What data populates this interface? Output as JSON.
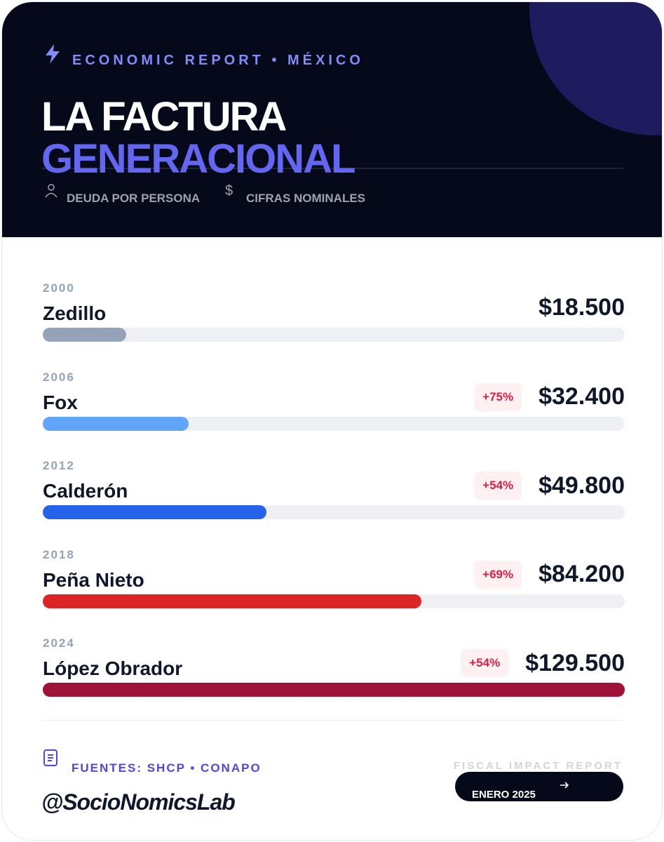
{
  "chart_data": {
    "type": "bar",
    "kicker": "ECONOMIC REPORT • MÉXICO",
    "title": "LA FACTURA",
    "title_highlight": "GENERACIONAL",
    "tags": [
      "DEUDA POR PERSONA",
      "CIFRAS NOMINALES"
    ],
    "years": [
      "2000",
      "2006",
      "2012",
      "2018",
      "2024"
    ],
    "categories": [
      "Zedillo",
      "Fox",
      "Calderón",
      "Peña Nieto",
      "López Obrador"
    ],
    "values": [
      18500,
      32400,
      49800,
      84200,
      129500
    ],
    "value_labels": [
      "$18.500",
      "$32.400",
      "$49.800",
      "$84.200",
      "$129.500"
    ],
    "change_labels": [
      null,
      "+75%",
      "+54%",
      "+69%",
      "+54%"
    ],
    "colors": [
      "#94a3b8",
      "#60a5fa",
      "#2563eb",
      "#dc2626",
      "#9f1239"
    ],
    "sources": "FUENTES: SHCP • CONAPO",
    "handle": "@SocioNomicsLab",
    "footer_label": "FISCAL IMPACT REPORT",
    "date": "ENERO 2025"
  }
}
